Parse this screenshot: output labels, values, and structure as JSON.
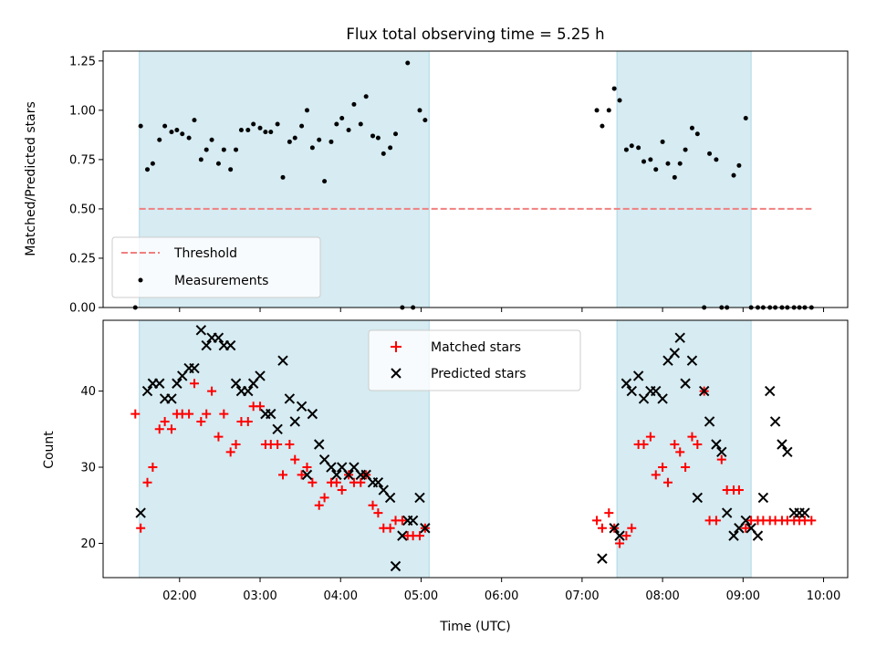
{
  "chart_data": [
    {
      "type": "scatter",
      "title": "Flux total observing time = 5.25 h",
      "ylabel": "Matched/Predicted stars",
      "ylim": [
        0,
        1.3
      ],
      "yticks": [
        0.0,
        0.25,
        0.5,
        0.75,
        1.0,
        1.25
      ],
      "ytick_labels": [
        "0.00",
        "0.25",
        "0.50",
        "0.75",
        "1.00",
        "1.25"
      ],
      "xlim": [
        "01:03",
        "10:18"
      ],
      "grid": false,
      "shaded_intervals": [
        [
          "01:30",
          "05:06"
        ],
        [
          "07:26",
          "09:06"
        ]
      ],
      "threshold": {
        "name": "Threshold",
        "value": 0.5,
        "x": [
          "01:30",
          "09:51"
        ],
        "color": "#f08080"
      },
      "series": [
        {
          "name": "Measurements",
          "color": "#000000",
          "x": [
            "01:27",
            "01:31",
            "01:36",
            "01:40",
            "01:45",
            "01:49",
            "01:54",
            "01:58",
            "02:02",
            "02:07",
            "02:11",
            "02:16",
            "02:20",
            "02:24",
            "02:29",
            "02:33",
            "02:38",
            "02:42",
            "02:46",
            "02:51",
            "02:55",
            "03:00",
            "03:04",
            "03:08",
            "03:13",
            "03:17",
            "03:22",
            "03:26",
            "03:31",
            "03:35",
            "03:39",
            "03:44",
            "03:48",
            "03:53",
            "03:57",
            "04:01",
            "04:06",
            "04:10",
            "04:15",
            "04:19",
            "04:24",
            "04:28",
            "04:32",
            "04:37",
            "04:41",
            "04:46",
            "04:50",
            "04:54",
            "04:59",
            "05:03",
            "07:11",
            "07:15",
            "07:20",
            "07:24",
            "07:28",
            "07:33",
            "07:37",
            "07:42",
            "07:46",
            "07:51",
            "07:55",
            "08:00",
            "08:04",
            "08:09",
            "08:13",
            "08:17",
            "08:22",
            "08:26",
            "08:31",
            "08:35",
            "08:40",
            "08:44",
            "08:48",
            "08:53",
            "08:57",
            "09:02",
            "09:06",
            "09:11",
            "09:15",
            "09:20",
            "09:24",
            "09:29",
            "09:33",
            "09:38",
            "09:42",
            "09:46",
            "09:51"
          ],
          "y": [
            0.0,
            0.92,
            0.7,
            0.73,
            0.85,
            0.92,
            0.89,
            0.9,
            0.88,
            0.86,
            0.95,
            0.75,
            0.8,
            0.85,
            0.73,
            0.8,
            0.7,
            0.8,
            0.9,
            0.9,
            0.93,
            0.91,
            0.89,
            0.89,
            0.93,
            0.66,
            0.84,
            0.86,
            0.92,
            1.0,
            0.81,
            0.85,
            0.64,
            0.84,
            0.93,
            0.96,
            0.9,
            1.03,
            0.93,
            1.07,
            0.87,
            0.86,
            0.78,
            0.81,
            0.88,
            0.0,
            1.24,
            0.0,
            1.0,
            0.95,
            1.0,
            0.92,
            1.0,
            1.11,
            1.05,
            0.8,
            0.82,
            0.81,
            0.74,
            0.75,
            0.7,
            0.84,
            0.73,
            0.66,
            0.73,
            0.8,
            0.91,
            0.88,
            0.0,
            0.78,
            0.75,
            0.0,
            0.0,
            0.67,
            0.72,
            0.96,
            0.0,
            0.0,
            0.0,
            0.0,
            0.0,
            0.0,
            0.0,
            0.0,
            0.0,
            0.0,
            0.0
          ]
        }
      ],
      "legend": {
        "placement": "lower-left",
        "entries": [
          "Threshold",
          "Measurements"
        ]
      }
    },
    {
      "type": "scatter",
      "xlabel": "Time (UTC)",
      "ylabel": "Count",
      "ylim": [
        15.5,
        49.3
      ],
      "yticks": [
        20,
        30,
        40
      ],
      "ytick_labels": [
        "20",
        "30",
        "40"
      ],
      "xlim": [
        "01:03",
        "10:18"
      ],
      "xticks": [
        "02:00",
        "03:00",
        "04:00",
        "05:00",
        "06:00",
        "07:00",
        "08:00",
        "09:00",
        "10:00"
      ],
      "grid": false,
      "shaded_intervals": [
        [
          "01:30",
          "05:06"
        ],
        [
          "07:26",
          "09:06"
        ]
      ],
      "series": [
        {
          "name": "Matched stars",
          "marker": "+",
          "color": "#ff0000",
          "x": [
            "01:27",
            "01:31",
            "01:36",
            "01:40",
            "01:45",
            "01:49",
            "01:54",
            "01:58",
            "02:02",
            "02:07",
            "02:11",
            "02:16",
            "02:20",
            "02:24",
            "02:29",
            "02:33",
            "02:38",
            "02:42",
            "02:46",
            "02:51",
            "02:55",
            "03:00",
            "03:04",
            "03:08",
            "03:13",
            "03:17",
            "03:22",
            "03:26",
            "03:31",
            "03:35",
            "03:39",
            "03:44",
            "03:48",
            "03:53",
            "03:57",
            "04:01",
            "04:06",
            "04:10",
            "04:15",
            "04:19",
            "04:24",
            "04:28",
            "04:32",
            "04:37",
            "04:41",
            "04:46",
            "04:50",
            "04:54",
            "04:59",
            "05:03",
            "07:11",
            "07:15",
            "07:20",
            "07:24",
            "07:28",
            "07:33",
            "07:37",
            "07:42",
            "07:46",
            "07:51",
            "07:55",
            "08:00",
            "08:04",
            "08:09",
            "08:13",
            "08:17",
            "08:22",
            "08:26",
            "08:31",
            "08:35",
            "08:40",
            "08:44",
            "08:48",
            "08:53",
            "08:57",
            "09:02",
            "09:06",
            "09:11",
            "09:15",
            "09:20",
            "09:24",
            "09:29",
            "09:33",
            "09:38",
            "09:42",
            "09:46",
            "09:51"
          ],
          "y": [
            37,
            22,
            28,
            30,
            35,
            36,
            35,
            37,
            37,
            37,
            41,
            36,
            37,
            40,
            34,
            37,
            32,
            33,
            36,
            36,
            38,
            38,
            33,
            33,
            33,
            29,
            33,
            31,
            29,
            30,
            28,
            25,
            26,
            28,
            28,
            27,
            29,
            28,
            28,
            29,
            25,
            24,
            22,
            22,
            23,
            23,
            21,
            21,
            21,
            22,
            23,
            22,
            24,
            22,
            20,
            21,
            22,
            33,
            33,
            34,
            29,
            30,
            28,
            33,
            32,
            30,
            34,
            33,
            40,
            23,
            23,
            31,
            27,
            27,
            27,
            22,
            23,
            23,
            23,
            23,
            23,
            23,
            23,
            23,
            23,
            23,
            23
          ]
        },
        {
          "name": "Predicted stars",
          "marker": "x",
          "color": "#000000",
          "x": [
            "01:31",
            "01:36",
            "01:40",
            "01:45",
            "01:49",
            "01:54",
            "01:58",
            "02:02",
            "02:07",
            "02:11",
            "02:16",
            "02:20",
            "02:24",
            "02:29",
            "02:33",
            "02:38",
            "02:42",
            "02:46",
            "02:51",
            "02:55",
            "03:00",
            "03:04",
            "03:08",
            "03:13",
            "03:17",
            "03:22",
            "03:26",
            "03:31",
            "03:35",
            "03:39",
            "03:44",
            "03:48",
            "03:53",
            "03:57",
            "04:01",
            "04:06",
            "04:10",
            "04:15",
            "04:19",
            "04:24",
            "04:28",
            "04:32",
            "04:37",
            "04:41",
            "04:46",
            "04:50",
            "04:54",
            "04:59",
            "05:03",
            "07:15",
            "07:24",
            "07:28",
            "07:33",
            "07:37",
            "07:42",
            "07:46",
            "07:51",
            "07:55",
            "08:00",
            "08:04",
            "08:09",
            "08:13",
            "08:17",
            "08:22",
            "08:26",
            "08:31",
            "08:35",
            "08:40",
            "08:44",
            "08:48",
            "08:53",
            "08:57",
            "09:02",
            "09:06",
            "09:11",
            "09:15",
            "09:20",
            "09:24",
            "09:29",
            "09:33",
            "09:38",
            "09:42",
            "09:46"
          ],
          "y": [
            24,
            40,
            41,
            41,
            39,
            39,
            41,
            42,
            43,
            43,
            48,
            46,
            47,
            47,
            46,
            46,
            41,
            40,
            40,
            41,
            42,
            37,
            37,
            35,
            44,
            39,
            36,
            38,
            29,
            37,
            33,
            31,
            30,
            29,
            30,
            29,
            30,
            29,
            29,
            28,
            28,
            27,
            26,
            17,
            21,
            23,
            23,
            26,
            22,
            18,
            22,
            21,
            41,
            40,
            42,
            39,
            40,
            40,
            39,
            44,
            45,
            47,
            41,
            44,
            26,
            40,
            36,
            33,
            32,
            24,
            21,
            22,
            23,
            22,
            21,
            26,
            40,
            36,
            33,
            32,
            24,
            24,
            24
          ]
        }
      ],
      "legend": {
        "placement": "upper-center",
        "entries": [
          "Matched stars",
          "Predicted stars"
        ]
      }
    }
  ]
}
